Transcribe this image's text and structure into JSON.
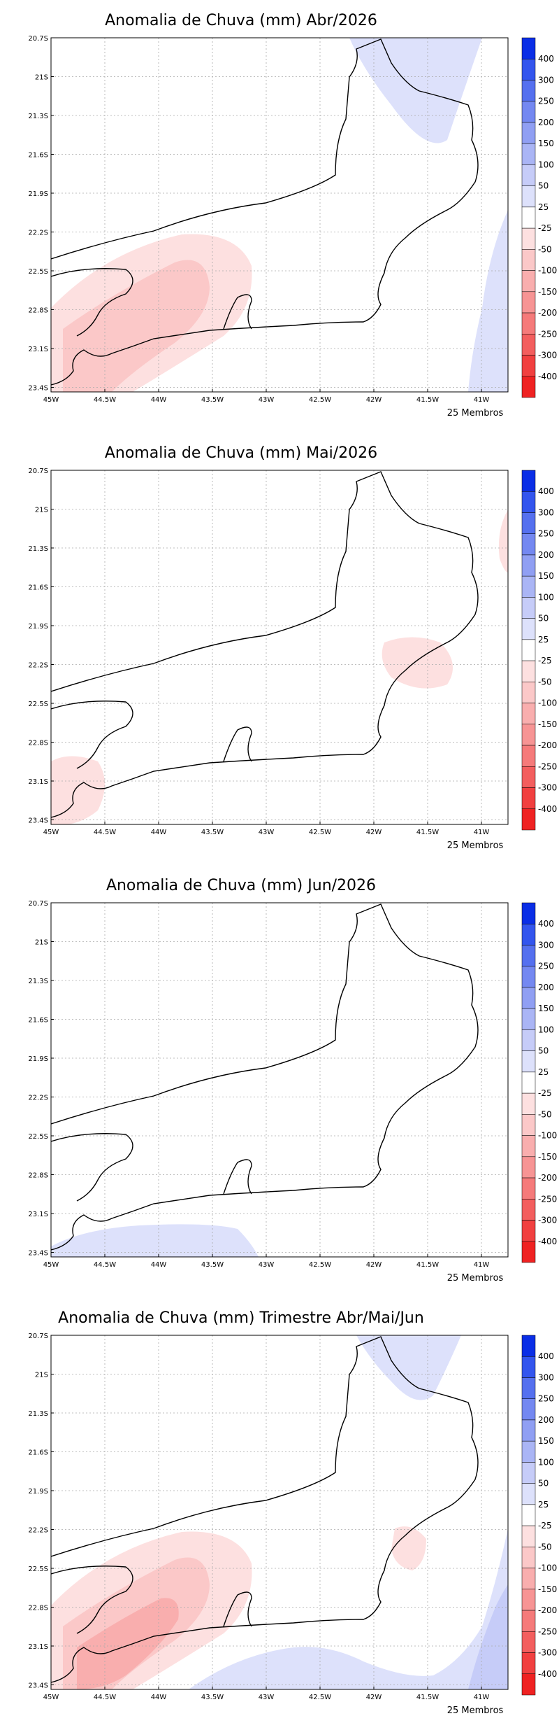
{
  "panels": [
    {
      "title": "Anomalia de Chuva (mm) Abr/2026",
      "members": "25 Membros"
    },
    {
      "title": "Anomalia de Chuva (mm) Mai/2026",
      "members": "25 Membros"
    },
    {
      "title": "Anomalia de Chuva (mm) Jun/2026",
      "members": "25 Membros"
    },
    {
      "title": "Anomalia de Chuva (mm) Trimestre Abr/Mai/Jun",
      "members": "25 Membros"
    }
  ],
  "lat_ticks": [
    "20.7S",
    "21S",
    "21.3S",
    "21.6S",
    "21.9S",
    "22.2S",
    "22.5S",
    "22.8S",
    "23.1S",
    "23.4S"
  ],
  "lon_ticks": [
    "45W",
    "44.5W",
    "44W",
    "43.5W",
    "43W",
    "42.5W",
    "42W",
    "41.5W",
    "41W"
  ],
  "colorbar": {
    "labels": [
      "400",
      "300",
      "250",
      "200",
      "150",
      "100",
      "50",
      "25",
      "-25",
      "-50",
      "-100",
      "-150",
      "-200",
      "-250",
      "-300",
      "-400"
    ],
    "colors": [
      "#0a2ee6",
      "#3355ee",
      "#5570ef",
      "#7488f1",
      "#909ff3",
      "#aab5f5",
      "#c6ccf8",
      "#dde1fb",
      "#ffffff",
      "#fde0e0",
      "#fbc8c8",
      "#f9aeae",
      "#f79494",
      "#f57a7a",
      "#f35e5e",
      "#f14040",
      "#ef2222"
    ]
  },
  "colors": {
    "positive_light": "#dde1fb",
    "positive_mid": "#c6ccf8",
    "positive_dark": "#aab5f5",
    "negative_light": "#fde0e0",
    "negative_mid": "#fbc8c8",
    "negative_dark": "#f9aeae"
  }
}
